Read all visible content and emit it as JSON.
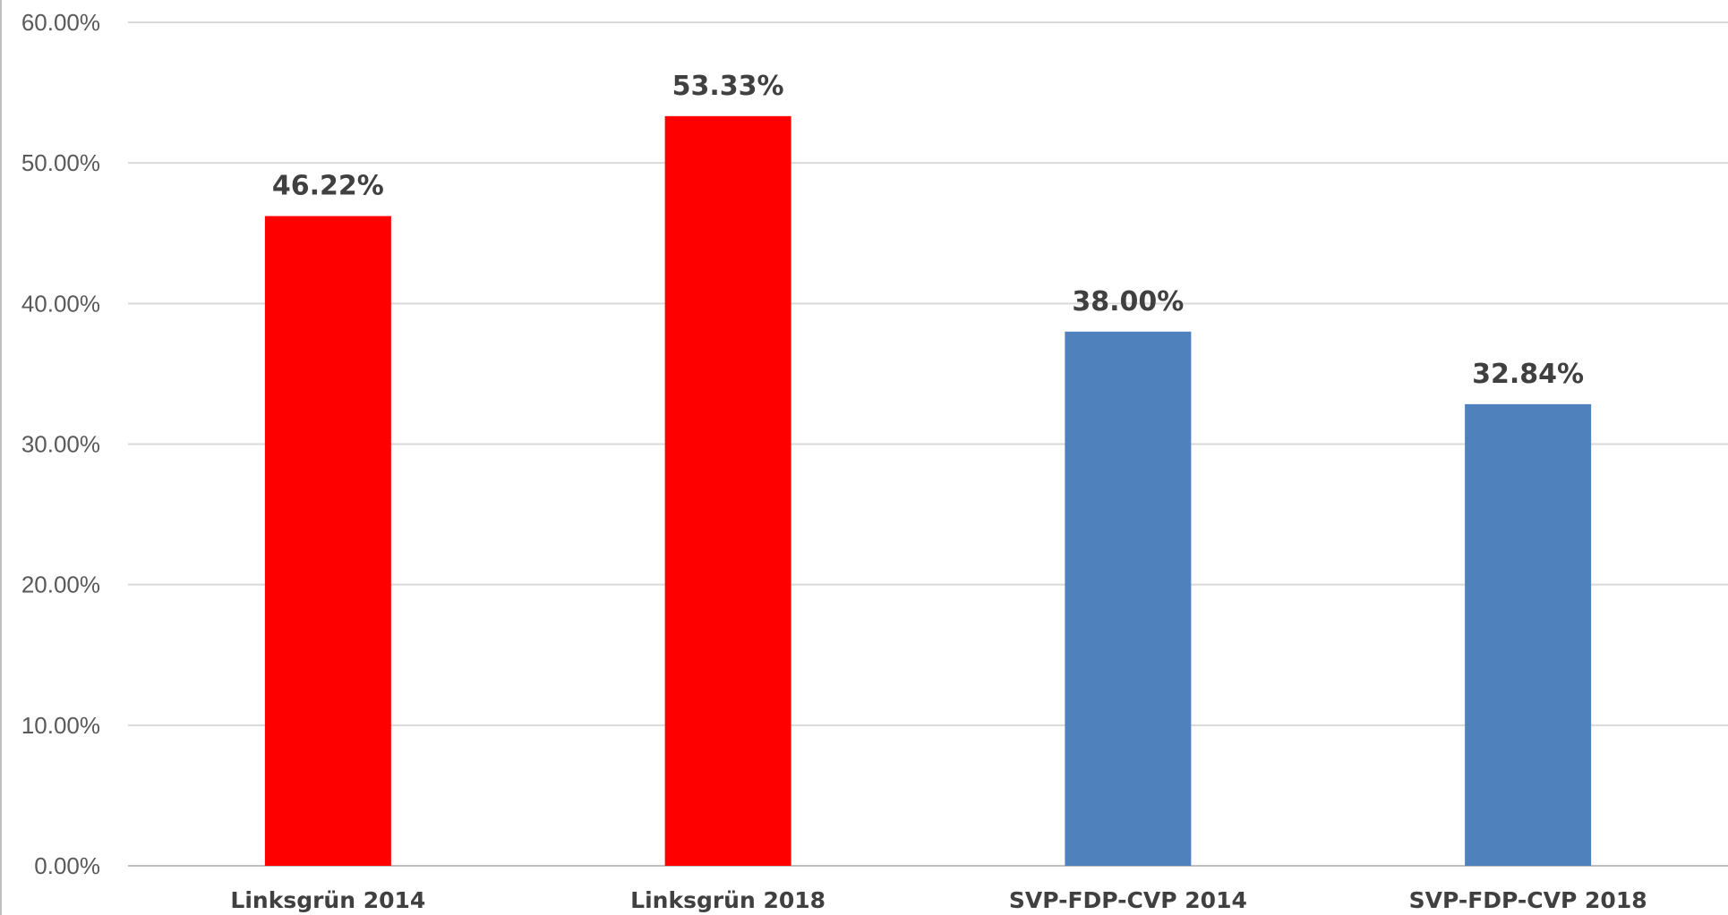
{
  "chart_data": {
    "type": "bar",
    "title": "",
    "xlabel": "",
    "ylabel": "",
    "categories": [
      "Linksgrün 2014",
      "Linksgrün 2018",
      "SVP-FDP-CVP 2014",
      "SVP-FDP-CVP 2018"
    ],
    "values": [
      46.22,
      53.33,
      38.0,
      32.84
    ],
    "data_labels": [
      "46.22%",
      "53.33%",
      "38.00%",
      "32.84%"
    ],
    "bar_colors": [
      "#ff0000",
      "#ff0000",
      "#4f81bd",
      "#4f81bd"
    ],
    "ylim": [
      0,
      60
    ],
    "yticks": [
      0,
      10,
      20,
      30,
      40,
      50,
      60
    ],
    "ytick_labels": [
      "0.00%",
      "10.00%",
      "20.00%",
      "30.00%",
      "40.00%",
      "50.00%",
      "60.00%"
    ],
    "grid": true,
    "legend": "none"
  }
}
